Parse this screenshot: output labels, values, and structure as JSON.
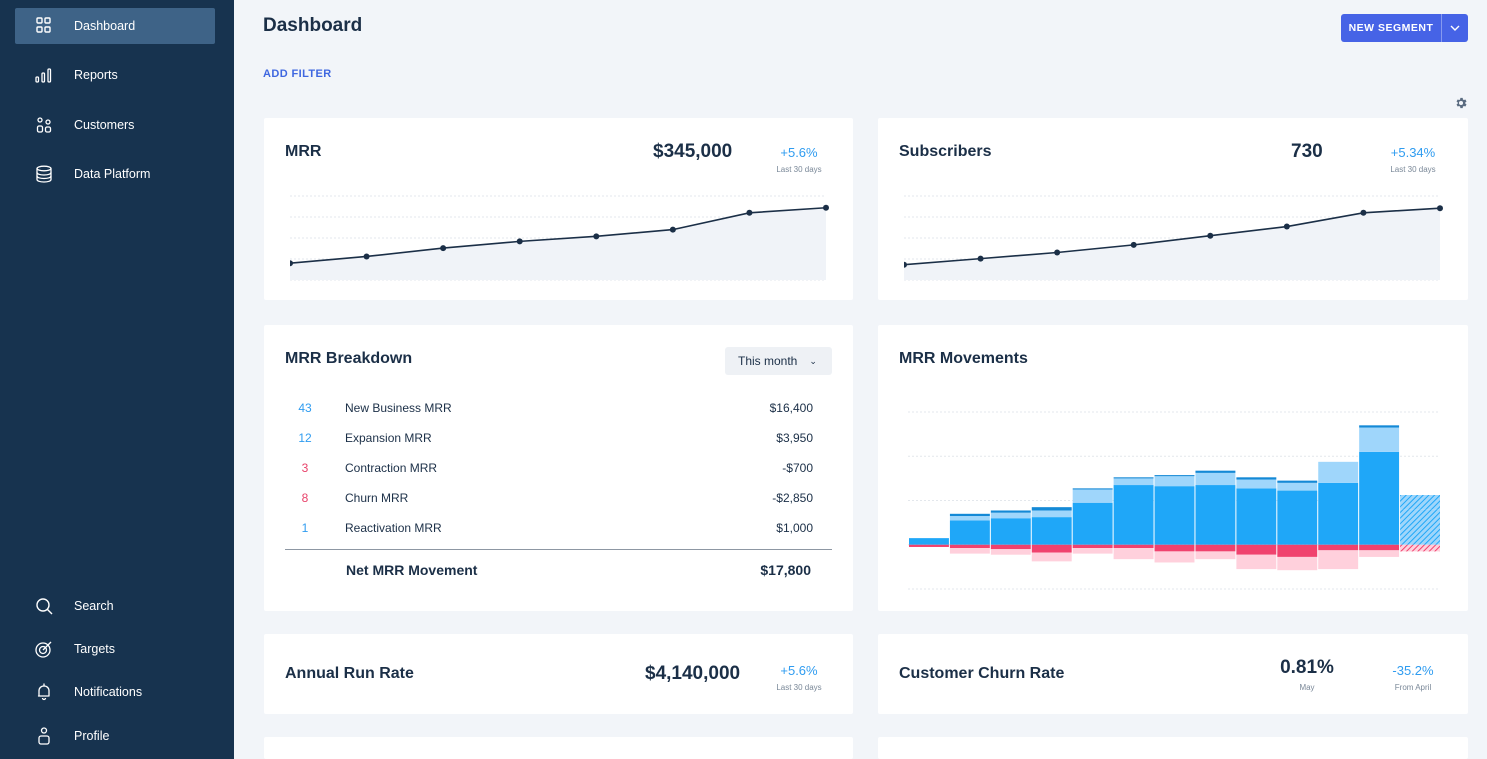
{
  "sidebar": {
    "items": [
      {
        "label": "Dashboard",
        "icon": "dashboard-grid-icon",
        "active": true
      },
      {
        "label": "Reports",
        "icon": "bar-chart-icon"
      },
      {
        "label": "Customers",
        "icon": "customers-icon"
      },
      {
        "label": "Data Platform",
        "icon": "database-icon"
      }
    ],
    "bottom_items": [
      {
        "label": "Search",
        "icon": "search-icon"
      },
      {
        "label": "Targets",
        "icon": "target-icon"
      },
      {
        "label": "Notifications",
        "icon": "bell-icon"
      },
      {
        "label": "Profile",
        "icon": "profile-icon"
      }
    ]
  },
  "header": {
    "title": "Dashboard",
    "add_filter": "ADD FILTER",
    "new_segment": "NEW SEGMENT"
  },
  "colors": {
    "sidebar_bg": "#17334f",
    "sidebar_active": "#3e6387",
    "accent": "#4663e6",
    "positive": "#2f9cf0",
    "negative": "#e8426a",
    "line": "#1b2f47"
  },
  "cards": {
    "mrr": {
      "title": "MRR",
      "value": "$345,000",
      "delta": "+5.6%",
      "delta_label": "Last 30 days"
    },
    "subscribers": {
      "title": "Subscribers",
      "value": "730",
      "delta": "+5.34%",
      "delta_label": "Last 30 days"
    },
    "breakdown": {
      "title": "MRR Breakdown",
      "period": "This month",
      "rows": [
        {
          "count": "43",
          "name": "New Business MRR",
          "amount": "$16,400",
          "color": "#2f9cf0"
        },
        {
          "count": "12",
          "name": "Expansion MRR",
          "amount": "$3,950",
          "color": "#2f9cf0"
        },
        {
          "count": "3",
          "name": "Contraction MRR",
          "amount": "-$700",
          "color": "#e8426a"
        },
        {
          "count": "8",
          "name": "Churn MRR",
          "amount": "-$2,850",
          "color": "#e8426a"
        },
        {
          "count": "1",
          "name": "Reactivation MRR",
          "amount": "$1,000",
          "color": "#2f9cf0"
        }
      ],
      "net_label": "Net MRR Movement",
      "net_amount": "$17,800"
    },
    "movements": {
      "title": "MRR Movements"
    },
    "arr": {
      "title": "Annual Run Rate",
      "value": "$4,140,000",
      "delta": "+5.6%",
      "delta_label": "Last 30 days"
    },
    "churn": {
      "title": "Customer Churn Rate",
      "value": "0.81%",
      "value_label": "May",
      "delta": "-35.2%",
      "delta_label": "From April"
    }
  },
  "chart_data": [
    {
      "name": "mrr-sparkline",
      "type": "line",
      "values": [
        10,
        14,
        19,
        23,
        26,
        30,
        40,
        43
      ],
      "ylim": [
        0,
        50
      ],
      "grid": true
    },
    {
      "name": "subscribers-sparkline",
      "type": "line",
      "values": [
        10,
        14,
        18,
        23,
        29,
        35,
        44,
        47
      ],
      "ylim": [
        0,
        55
      ],
      "grid": true
    },
    {
      "name": "mrr-movements",
      "type": "bar",
      "stacked": true,
      "ylim": [
        -4,
        13
      ],
      "grid": true,
      "series": [
        {
          "values": [
            0.6,
            2.2,
            2.4,
            2.5,
            3.8,
            5.4,
            5.3,
            5.4,
            5.1,
            4.9,
            5.6,
            8.4,
            3.2
          ]
        },
        {
          "values": [
            0.0,
            0.4,
            0.5,
            0.6,
            1.2,
            0.6,
            0.9,
            1.1,
            0.8,
            0.7,
            1.9,
            2.2,
            1.3
          ]
        },
        {
          "values": [
            0.0,
            0.2,
            0.2,
            0.3,
            0.1,
            0.1,
            0.1,
            0.2,
            0.2,
            0.2,
            0.0,
            0.2,
            0.0
          ]
        },
        {
          "values": [
            -0.2,
            -0.3,
            -0.4,
            -0.7,
            -0.3,
            -0.3,
            -0.6,
            -0.6,
            -0.9,
            -1.1,
            -0.5,
            -0.5,
            -0.6
          ]
        },
        {
          "values": [
            0.0,
            -0.5,
            -0.5,
            -0.8,
            -0.5,
            -1.0,
            -1.0,
            -0.7,
            -1.3,
            -1.2,
            -1.7,
            -0.6,
            0.0
          ]
        }
      ],
      "last_bar_projected": true
    }
  ]
}
